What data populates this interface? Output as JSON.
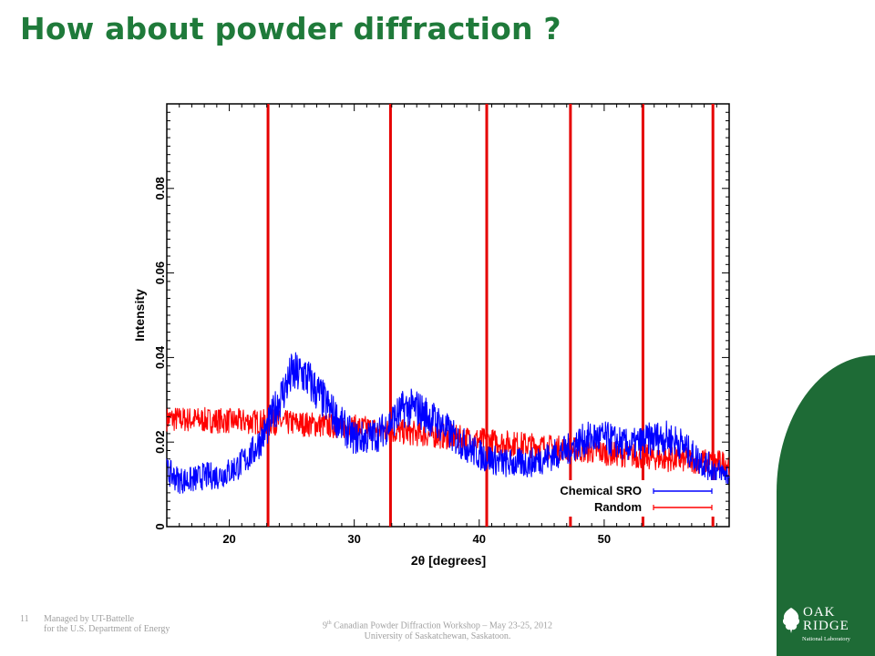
{
  "slide": {
    "title": "How about powder diffraction ?",
    "page_number": "11",
    "footer_left_line1": "Managed by UT-Battelle",
    "footer_left_line2": "for the U.S. Department of Energy",
    "footer_center_prefix": "9",
    "footer_center_sup": "th",
    "footer_center_line1_rest": " Canadian Powder Diffraction Workshop – May 23-25, 2012",
    "footer_center_line2": "University of Saskatchewan, Saskatoon.",
    "logo_oak": "OAK",
    "logo_ridge": "RIDGE",
    "logo_sub": "National Laboratory"
  },
  "colors": {
    "title": "#1f7a3a",
    "brand_panel": "#1e6b36",
    "sro": "#0000ff",
    "random": "#ff0000",
    "bragg": "#e60000"
  },
  "chart_data": {
    "type": "line",
    "xlabel": "2θ [degrees]",
    "ylabel": "Intensity",
    "xlim": [
      15,
      60
    ],
    "ylim": [
      0,
      0.1
    ],
    "x_ticks": [
      20,
      30,
      40,
      50
    ],
    "y_ticks": [
      0,
      0.02,
      0.04,
      0.06,
      0.08
    ],
    "y_tick_labels": [
      "0",
      "0.02",
      "0.04",
      "0.06",
      "0.08"
    ],
    "legend_position": "bottom-right",
    "bragg_peaks": [
      23.1,
      32.9,
      40.6,
      47.3,
      53.1,
      58.7
    ],
    "series": [
      {
        "name": "Chemical SRO",
        "color": "#0000ff",
        "x": [
          15,
          16,
          17,
          18,
          19,
          20,
          21,
          22,
          23,
          24,
          25,
          26,
          27,
          28,
          29,
          30,
          31,
          32,
          33,
          34,
          35,
          36,
          37,
          38,
          39,
          40,
          41,
          42,
          43,
          44,
          45,
          46,
          47,
          48,
          49,
          50,
          51,
          52,
          53,
          54,
          55,
          56,
          57,
          58,
          59,
          60
        ],
        "values": [
          0.013,
          0.011,
          0.011,
          0.012,
          0.012,
          0.013,
          0.015,
          0.018,
          0.023,
          0.03,
          0.036,
          0.036,
          0.032,
          0.028,
          0.024,
          0.021,
          0.021,
          0.022,
          0.025,
          0.028,
          0.028,
          0.026,
          0.024,
          0.021,
          0.019,
          0.017,
          0.016,
          0.015,
          0.015,
          0.015,
          0.016,
          0.017,
          0.018,
          0.02,
          0.021,
          0.021,
          0.02,
          0.019,
          0.02,
          0.021,
          0.021,
          0.02,
          0.017,
          0.015,
          0.013,
          0.012
        ],
        "noise": 0.004
      },
      {
        "name": "Random",
        "color": "#ff0000",
        "x": [
          15,
          20,
          25,
          30,
          35,
          40,
          45,
          50,
          55,
          60
        ],
        "values": [
          0.0255,
          0.025,
          0.0245,
          0.0235,
          0.022,
          0.0205,
          0.019,
          0.0175,
          0.016,
          0.015
        ],
        "noise": 0.003
      }
    ]
  }
}
